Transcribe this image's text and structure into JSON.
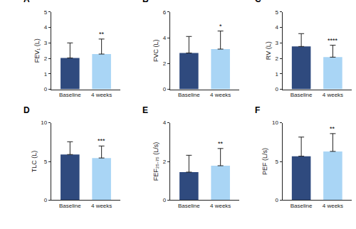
{
  "chart_data": [
    {
      "type": "bar",
      "title": "A",
      "y_label": "FEV₁ (L)",
      "categories": [
        "Baseline",
        "4 weeks"
      ],
      "values": [
        2.03,
        2.28
      ],
      "errors": [
        0.97,
        0.97
      ],
      "colors": [
        "#2f4a7e",
        "#a9d5f5"
      ],
      "ylim": [
        0,
        5
      ],
      "yticks": [
        0,
        1,
        2,
        3,
        4,
        5
      ],
      "grid": false,
      "annotations": [
        {
          "x": "4 weeks",
          "text": "**"
        }
      ]
    },
    {
      "type": "bar",
      "title": "B",
      "y_label": "FVC (L)",
      "categories": [
        "Baseline",
        "4 weeks"
      ],
      "values": [
        2.82,
        3.12
      ],
      "errors": [
        1.28,
        1.4
      ],
      "colors": [
        "#2f4a7e",
        "#a9d5f5"
      ],
      "ylim": [
        0,
        6
      ],
      "yticks": [
        0,
        2,
        4,
        6
      ],
      "grid": false,
      "annotations": [
        {
          "x": "4 weeks",
          "text": "*"
        }
      ]
    },
    {
      "type": "bar",
      "title": "C",
      "y_label": "RV (L)",
      "categories": [
        "Baseline",
        "4 weeks"
      ],
      "values": [
        2.77,
        2.08
      ],
      "errors": [
        0.83,
        0.77
      ],
      "colors": [
        "#2f4a7e",
        "#a9d5f5"
      ],
      "ylim": [
        0,
        5
      ],
      "yticks": [
        0,
        1,
        2,
        3,
        4,
        5
      ],
      "grid": false,
      "annotations": [
        {
          "x": "4 weeks",
          "text": "****"
        }
      ]
    },
    {
      "type": "bar",
      "title": "D",
      "y_label": "TLC (L)",
      "categories": [
        "Baseline",
        "4 weeks"
      ],
      "values": [
        5.9,
        5.45
      ],
      "errors": [
        1.65,
        1.55
      ],
      "colors": [
        "#2f4a7e",
        "#a9d5f5"
      ],
      "ylim": [
        0,
        10
      ],
      "yticks": [
        0,
        5,
        10
      ],
      "grid": false,
      "annotations": [
        {
          "x": "4 weeks",
          "text": "***"
        }
      ]
    },
    {
      "type": "bar",
      "title": "E",
      "y_label": "FEF₂₅₋₇₅ (L/s)",
      "categories": [
        "Baseline",
        "4 weeks"
      ],
      "values": [
        1.45,
        1.78
      ],
      "errors": [
        0.87,
        0.89
      ],
      "colors": [
        "#2f4a7e",
        "#a9d5f5"
      ],
      "ylim": [
        0,
        4
      ],
      "yticks": [
        0,
        2,
        4
      ],
      "grid": false,
      "annotations": [
        {
          "x": "4 weeks",
          "text": "**"
        }
      ]
    },
    {
      "type": "bar",
      "title": "F",
      "y_label": "PEF (L/s)",
      "categories": [
        "Baseline",
        "4 weeks"
      ],
      "values": [
        5.68,
        6.3
      ],
      "errors": [
        2.47,
        2.3
      ],
      "colors": [
        "#2f4a7e",
        "#a9d5f5"
      ],
      "ylim": [
        0,
        10
      ],
      "yticks": [
        0,
        5,
        10
      ],
      "grid": false,
      "annotations": [
        {
          "x": "4 weeks",
          "text": "**"
        }
      ]
    }
  ]
}
